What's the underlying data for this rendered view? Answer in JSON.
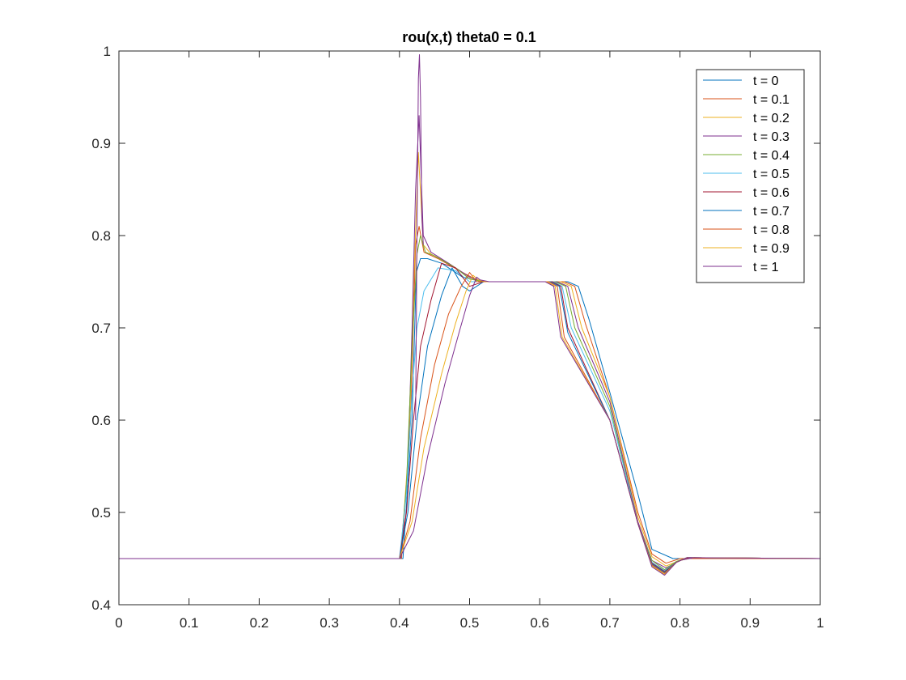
{
  "chart_data": {
    "type": "line",
    "title": "rou(x,t) theta0 = 0.1",
    "xlabel": "",
    "ylabel": "",
    "xlim": [
      0,
      1
    ],
    "ylim": [
      0.4,
      1
    ],
    "xticks": [
      0,
      0.1,
      0.2,
      0.3,
      0.4,
      0.5,
      0.6,
      0.7,
      0.8,
      0.9,
      1
    ],
    "yticks": [
      0.4,
      0.5,
      0.6,
      0.7,
      0.8,
      0.9,
      1
    ],
    "xtick_labels": [
      "0",
      "0.1",
      "0.2",
      "0.3",
      "0.4",
      "0.5",
      "0.6",
      "0.7",
      "0.8",
      "0.9",
      "1"
    ],
    "ytick_labels": [
      "0.4",
      "0.5",
      "0.6",
      "0.7",
      "0.8",
      "0.9",
      "1"
    ],
    "grid": false,
    "legend_position": "top-right",
    "series": [
      {
        "name": "t = 0",
        "color": "#0072BD",
        "x": [
          0,
          0.405,
          0.418,
          0.424,
          0.43,
          0.44,
          0.46,
          0.49,
          0.52,
          0.64,
          0.655,
          0.67,
          0.7,
          0.74,
          0.76,
          0.79,
          0.8,
          0.82,
          1
        ],
        "y": [
          0.45,
          0.45,
          0.6,
          0.76,
          0.775,
          0.775,
          0.77,
          0.755,
          0.75,
          0.75,
          0.745,
          0.71,
          0.63,
          0.52,
          0.46,
          0.45,
          0.45,
          0.45,
          0.45
        ]
      },
      {
        "name": "t = 0.1",
        "color": "#D95319",
        "x": [
          0,
          0.403,
          0.416,
          0.423,
          0.428,
          0.435,
          0.455,
          0.49,
          0.515,
          0.635,
          0.65,
          0.665,
          0.7,
          0.74,
          0.76,
          0.78,
          0.8,
          0.82,
          1
        ],
        "y": [
          0.45,
          0.45,
          0.6,
          0.79,
          0.81,
          0.782,
          0.775,
          0.76,
          0.75,
          0.75,
          0.745,
          0.705,
          0.625,
          0.5,
          0.455,
          0.445,
          0.45,
          0.45,
          0.45
        ]
      },
      {
        "name": "t = 0.2",
        "color": "#EDB120",
        "x": [
          0,
          0.402,
          0.414,
          0.42,
          0.427,
          0.434,
          0.445,
          0.47,
          0.5,
          0.52,
          0.63,
          0.645,
          0.66,
          0.7,
          0.74,
          0.76,
          0.78,
          0.8,
          0.82,
          1
        ],
        "y": [
          0.45,
          0.45,
          0.58,
          0.74,
          0.89,
          0.79,
          0.78,
          0.77,
          0.755,
          0.75,
          0.75,
          0.745,
          0.7,
          0.625,
          0.495,
          0.452,
          0.442,
          0.448,
          0.451,
          0.45
        ]
      },
      {
        "name": "t = 0.3",
        "color": "#7E2F8E",
        "x": [
          0,
          0.402,
          0.412,
          0.418,
          0.423,
          0.428,
          0.434,
          0.445,
          0.47,
          0.5,
          0.52,
          0.625,
          0.64,
          0.655,
          0.7,
          0.74,
          0.76,
          0.78,
          0.8,
          0.82,
          1
        ],
        "y": [
          0.45,
          0.45,
          0.55,
          0.7,
          0.85,
          0.93,
          0.8,
          0.782,
          0.77,
          0.755,
          0.75,
          0.75,
          0.745,
          0.7,
          0.62,
          0.49,
          0.448,
          0.44,
          0.448,
          0.451,
          0.45
        ]
      },
      {
        "name": "t = 0.4",
        "color": "#77AC30",
        "x": [
          0,
          0.401,
          0.41,
          0.418,
          0.425,
          0.43,
          0.437,
          0.45,
          0.48,
          0.5,
          0.52,
          0.622,
          0.637,
          0.65,
          0.7,
          0.74,
          0.76,
          0.778,
          0.795,
          0.81,
          1
        ],
        "y": [
          0.45,
          0.45,
          0.53,
          0.68,
          0.78,
          0.8,
          0.782,
          0.778,
          0.765,
          0.753,
          0.75,
          0.75,
          0.745,
          0.7,
          0.615,
          0.488,
          0.448,
          0.438,
          0.447,
          0.451,
          0.45
        ]
      },
      {
        "name": "t = 0.5",
        "color": "#4DBEEE",
        "x": [
          0,
          0.4,
          0.41,
          0.418,
          0.425,
          0.435,
          0.455,
          0.48,
          0.5,
          0.52,
          0.62,
          0.632,
          0.645,
          0.7,
          0.74,
          0.76,
          0.778,
          0.795,
          0.81,
          1
        ],
        "y": [
          0.45,
          0.45,
          0.52,
          0.63,
          0.7,
          0.74,
          0.765,
          0.762,
          0.75,
          0.75,
          0.75,
          0.745,
          0.7,
          0.61,
          0.488,
          0.446,
          0.437,
          0.446,
          0.451,
          0.45
        ]
      },
      {
        "name": "t = 0.6",
        "color": "#A2142F",
        "x": [
          0,
          0.4,
          0.41,
          0.42,
          0.43,
          0.445,
          0.46,
          0.48,
          0.5,
          0.52,
          0.618,
          0.63,
          0.64,
          0.7,
          0.74,
          0.76,
          0.778,
          0.795,
          0.81,
          1
        ],
        "y": [
          0.45,
          0.45,
          0.5,
          0.6,
          0.68,
          0.73,
          0.77,
          0.765,
          0.745,
          0.75,
          0.75,
          0.745,
          0.7,
          0.6,
          0.488,
          0.445,
          0.436,
          0.446,
          0.451,
          0.45
        ]
      },
      {
        "name": "t = 0.7",
        "color": "#0072BD",
        "x": [
          0,
          0.4,
          0.412,
          0.425,
          0.44,
          0.46,
          0.475,
          0.49,
          0.5,
          0.52,
          0.615,
          0.628,
          0.64,
          0.7,
          0.74,
          0.76,
          0.778,
          0.795,
          0.81,
          1
        ],
        "y": [
          0.45,
          0.45,
          0.5,
          0.6,
          0.68,
          0.735,
          0.765,
          0.745,
          0.74,
          0.75,
          0.75,
          0.745,
          0.695,
          0.6,
          0.488,
          0.444,
          0.435,
          0.446,
          0.451,
          0.45
        ]
      },
      {
        "name": "t = 0.8",
        "color": "#D95319",
        "x": [
          0,
          0.4,
          0.415,
          0.43,
          0.45,
          0.47,
          0.488,
          0.5,
          0.51,
          0.525,
          0.613,
          0.625,
          0.635,
          0.7,
          0.74,
          0.76,
          0.778,
          0.795,
          0.81,
          1
        ],
        "y": [
          0.45,
          0.45,
          0.49,
          0.58,
          0.66,
          0.715,
          0.745,
          0.76,
          0.75,
          0.75,
          0.75,
          0.745,
          0.69,
          0.6,
          0.488,
          0.443,
          0.434,
          0.446,
          0.451,
          0.45
        ]
      },
      {
        "name": "t = 0.9",
        "color": "#EDB120",
        "x": [
          0,
          0.4,
          0.418,
          0.435,
          0.46,
          0.48,
          0.495,
          0.505,
          0.512,
          0.525,
          0.61,
          0.622,
          0.632,
          0.7,
          0.74,
          0.76,
          0.778,
          0.795,
          0.81,
          1
        ],
        "y": [
          0.45,
          0.45,
          0.49,
          0.57,
          0.65,
          0.705,
          0.74,
          0.757,
          0.752,
          0.75,
          0.75,
          0.745,
          0.69,
          0.6,
          0.488,
          0.442,
          0.433,
          0.446,
          0.451,
          0.45
        ]
      },
      {
        "name": "t = 1",
        "color": "#7E2F8E",
        "x": [
          0,
          0.4,
          0.42,
          0.44,
          0.465,
          0.485,
          0.5,
          0.51,
          0.515,
          0.528,
          0.608,
          0.62,
          0.63,
          0.7,
          0.74,
          0.76,
          0.778,
          0.795,
          0.81,
          1
        ],
        "y": [
          0.45,
          0.45,
          0.48,
          0.56,
          0.64,
          0.695,
          0.735,
          0.755,
          0.752,
          0.75,
          0.75,
          0.745,
          0.69,
          0.6,
          0.488,
          0.441,
          0.432,
          0.446,
          0.451,
          0.45
        ]
      },
      {
        "name": "",
        "color": "#7E2F8E",
        "legend": false,
        "x": [
          0.423,
          0.425,
          0.427,
          0.4285,
          0.43,
          0.432,
          0.434
        ],
        "y": [
          0.6,
          0.8,
          0.97,
          0.996,
          0.95,
          0.82,
          0.79
        ]
      }
    ]
  }
}
